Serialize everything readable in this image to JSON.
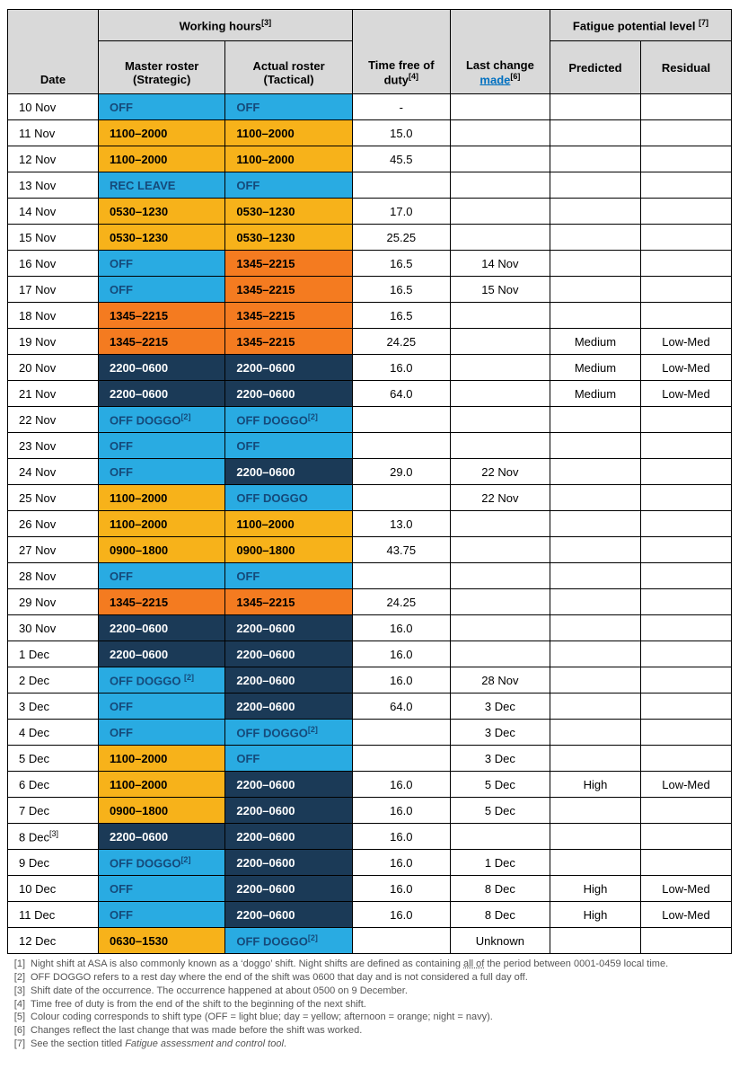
{
  "colors": {
    "off": "#29abe2",
    "day": "#f7b21a",
    "afternoon": "#f47b20",
    "night": "#1b3a57",
    "header": "#d9d9d9"
  },
  "headers": {
    "working_hours": "Working hours",
    "wh_sup": "[3]",
    "fatigue": "Fatigue potential level ",
    "fat_sup": "[7]",
    "date": "Date",
    "master_l1": "Master roster",
    "master_l2": "(Strategic)",
    "actual_l1": "Actual roster",
    "actual_l2": "(Tactical)",
    "tf_l1": "Time free of",
    "tf_l2": "duty",
    "tf_sup": "[4]",
    "last_l1": "Last change",
    "last_made": "made",
    "last_sup": "[6]",
    "predicted": "Predicted",
    "residual": "Residual"
  },
  "cellTypeToClass": {
    "off": "off",
    "day": "day",
    "aft": "aft",
    "nite": "nite"
  },
  "rows": [
    {
      "date": "10 Nov",
      "m": {
        "t": "OFF",
        "c": "off"
      },
      "a": {
        "t": "OFF",
        "c": "off"
      },
      "tf": "-",
      "last": "",
      "pred": "",
      "res": ""
    },
    {
      "date": "11 Nov",
      "m": {
        "t": "1100–2000",
        "c": "day"
      },
      "a": {
        "t": "1100–2000",
        "c": "day"
      },
      "tf": "15.0",
      "last": "",
      "pred": "",
      "res": ""
    },
    {
      "date": "12 Nov",
      "m": {
        "t": "1100–2000",
        "c": "day"
      },
      "a": {
        "t": "1100–2000",
        "c": "day"
      },
      "tf": "45.5",
      "last": "",
      "pred": "",
      "res": ""
    },
    {
      "date": "13 Nov",
      "m": {
        "t": "REC LEAVE",
        "c": "off"
      },
      "a": {
        "t": "OFF",
        "c": "off"
      },
      "tf": "",
      "last": "",
      "pred": "",
      "res": ""
    },
    {
      "date": "14 Nov",
      "m": {
        "t": "0530–1230",
        "c": "day"
      },
      "a": {
        "t": "0530–1230",
        "c": "day"
      },
      "tf": "17.0",
      "last": "",
      "pred": "",
      "res": ""
    },
    {
      "date": "15 Nov",
      "m": {
        "t": "0530–1230",
        "c": "day"
      },
      "a": {
        "t": "0530–1230",
        "c": "day"
      },
      "tf": "25.25",
      "last": "",
      "pred": "",
      "res": ""
    },
    {
      "date": "16 Nov",
      "m": {
        "t": "OFF",
        "c": "off"
      },
      "a": {
        "t": "1345–2215",
        "c": "aft"
      },
      "tf": "16.5",
      "last": "14 Nov",
      "pred": "",
      "res": ""
    },
    {
      "date": "17 Nov",
      "m": {
        "t": "OFF",
        "c": "off"
      },
      "a": {
        "t": "1345–2215",
        "c": "aft"
      },
      "tf": "16.5",
      "last": "15 Nov",
      "pred": "",
      "res": ""
    },
    {
      "date": "18 Nov",
      "m": {
        "t": "1345–2215",
        "c": "aft"
      },
      "a": {
        "t": "1345–2215",
        "c": "aft"
      },
      "tf": "16.5",
      "last": "",
      "pred": "",
      "res": ""
    },
    {
      "date": "19 Nov",
      "m": {
        "t": "1345–2215",
        "c": "aft"
      },
      "a": {
        "t": "1345–2215",
        "c": "aft"
      },
      "tf": "24.25",
      "last": "",
      "pred": "Medium",
      "res": "Low-Med"
    },
    {
      "date": "20 Nov",
      "m": {
        "t": "2200–0600",
        "c": "nite"
      },
      "a": {
        "t": "2200–0600",
        "c": "nite"
      },
      "tf": "16.0",
      "last": "",
      "pred": "Medium",
      "res": "Low-Med"
    },
    {
      "date": "21 Nov",
      "m": {
        "t": "2200–0600",
        "c": "nite"
      },
      "a": {
        "t": "2200–0600",
        "c": "nite"
      },
      "tf": "64.0",
      "last": "",
      "pred": "Medium",
      "res": "Low-Med"
    },
    {
      "date": "22 Nov",
      "m": {
        "t": "OFF DOGGO",
        "sup": "[2]",
        "c": "off"
      },
      "a": {
        "t": "OFF DOGGO",
        "sup": "[2]",
        "c": "off"
      },
      "tf": "",
      "last": "",
      "pred": "",
      "res": ""
    },
    {
      "date": "23 Nov",
      "m": {
        "t": "OFF",
        "c": "off"
      },
      "a": {
        "t": "OFF",
        "c": "off"
      },
      "tf": "",
      "last": "",
      "pred": "",
      "res": ""
    },
    {
      "date": "24 Nov",
      "m": {
        "t": "OFF",
        "c": "off"
      },
      "a": {
        "t": "2200–0600",
        "c": "nite"
      },
      "tf": "29.0",
      "last": "22 Nov",
      "pred": "",
      "res": ""
    },
    {
      "date": "25 Nov",
      "m": {
        "t": "1100–2000",
        "c": "day"
      },
      "a": {
        "t": "OFF DOGGO",
        "c": "off"
      },
      "tf": "",
      "last": "22 Nov",
      "pred": "",
      "res": ""
    },
    {
      "date": "26 Nov",
      "m": {
        "t": "1100–2000",
        "c": "day"
      },
      "a": {
        "t": "1100–2000",
        "c": "day"
      },
      "tf": "13.0",
      "last": "",
      "pred": "",
      "res": ""
    },
    {
      "date": "27 Nov",
      "m": {
        "t": "0900–1800",
        "c": "day"
      },
      "a": {
        "t": "0900–1800",
        "c": "day"
      },
      "tf": "43.75",
      "last": "",
      "pred": "",
      "res": ""
    },
    {
      "date": "28 Nov",
      "m": {
        "t": "OFF",
        "c": "off"
      },
      "a": {
        "t": "OFF",
        "c": "off"
      },
      "tf": "",
      "last": "",
      "pred": "",
      "res": ""
    },
    {
      "date": "29 Nov",
      "m": {
        "t": "1345–2215",
        "c": "aft"
      },
      "a": {
        "t": "1345–2215",
        "c": "aft"
      },
      "tf": "24.25",
      "last": "",
      "pred": "",
      "res": ""
    },
    {
      "date": "30 Nov",
      "m": {
        "t": "2200–0600",
        "c": "nite"
      },
      "a": {
        "t": "2200–0600",
        "c": "nite"
      },
      "tf": "16.0",
      "last": "",
      "pred": "",
      "res": ""
    },
    {
      "date": "1 Dec",
      "m": {
        "t": "2200–0600",
        "c": "nite"
      },
      "a": {
        "t": "2200–0600",
        "c": "nite"
      },
      "tf": "16.0",
      "last": "",
      "pred": "",
      "res": ""
    },
    {
      "date": "2 Dec",
      "m": {
        "t": "OFF DOGGO ",
        "sup": "[2]",
        "c": "off"
      },
      "a": {
        "t": "2200–0600",
        "c": "nite"
      },
      "tf": "16.0",
      "last": "28 Nov",
      "pred": "",
      "res": ""
    },
    {
      "date": "3 Dec",
      "m": {
        "t": "OFF",
        "c": "off"
      },
      "a": {
        "t": "2200–0600",
        "c": "nite"
      },
      "tf": "64.0",
      "last": "3 Dec",
      "pred": "",
      "res": ""
    },
    {
      "date": "4 Dec",
      "m": {
        "t": "OFF",
        "c": "off"
      },
      "a": {
        "t": "OFF DOGGO",
        "sup": "[2]",
        "c": "off"
      },
      "tf": "",
      "last": "3 Dec",
      "pred": "",
      "res": ""
    },
    {
      "date": "5 Dec",
      "m": {
        "t": "1100–2000",
        "c": "day"
      },
      "a": {
        "t": "OFF",
        "c": "off"
      },
      "tf": "",
      "last": "3 Dec",
      "pred": "",
      "res": ""
    },
    {
      "date": "6 Dec",
      "m": {
        "t": "1100–2000",
        "c": "day"
      },
      "a": {
        "t": "2200–0600",
        "c": "nite"
      },
      "tf": "16.0",
      "last": "5 Dec",
      "pred": "High",
      "res": "Low-Med"
    },
    {
      "date": "7 Dec",
      "m": {
        "t": "0900–1800",
        "c": "day"
      },
      "a": {
        "t": "2200–0600",
        "c": "nite"
      },
      "tf": "16.0",
      "last": "5 Dec",
      "pred": "",
      "res": ""
    },
    {
      "date": "8 Dec",
      "dsup": "[3]",
      "m": {
        "t": "2200–0600",
        "c": "nite"
      },
      "a": {
        "t": "2200–0600",
        "c": "nite"
      },
      "tf": "16.0",
      "last": "",
      "pred": "",
      "res": ""
    },
    {
      "date": "9 Dec",
      "m": {
        "t": "OFF DOGGO",
        "sup": "[2]",
        "c": "off"
      },
      "a": {
        "t": "2200–0600",
        "c": "nite"
      },
      "tf": "16.0",
      "last": "1 Dec",
      "pred": "",
      "res": ""
    },
    {
      "date": "10 Dec",
      "m": {
        "t": "OFF",
        "c": "off"
      },
      "a": {
        "t": "2200–0600",
        "c": "nite"
      },
      "tf": "16.0",
      "last": "8 Dec",
      "pred": "High",
      "res": "Low-Med"
    },
    {
      "date": "11 Dec",
      "m": {
        "t": "OFF",
        "c": "off"
      },
      "a": {
        "t": "2200–0600",
        "c": "nite"
      },
      "tf": "16.0",
      "last": "8 Dec",
      "pred": "High",
      "res": "Low-Med"
    },
    {
      "date": "12 Dec",
      "m": {
        "t": "0630–1530",
        "c": "day"
      },
      "a": {
        "t": "OFF DOGGO",
        "sup": "[2]",
        "c": "off"
      },
      "tf": "",
      "last": "Unknown",
      "pred": "",
      "res": ""
    }
  ],
  "footnotes": [
    {
      "n": "[1]",
      "t": "Night shift at ASA is also commonly known as a ‘doggo’ shift. Night shifts are defined as containing ",
      "u": "all of",
      "t2": " the period between 0001-0459 local time."
    },
    {
      "n": "[2]",
      "t": "OFF DOGGO refers to a rest day where the end of the shift was 0600 that day and is not considered a full day off."
    },
    {
      "n": "[3]",
      "t": "Shift date of the occurrence. The occurrence happened at about 0500 on 9 December."
    },
    {
      "n": "[4]",
      "t": "Time free of duty is from the end of the shift to the beginning of the next shift."
    },
    {
      "n": "[5]",
      "t": "Colour coding corresponds to shift type (OFF = light blue; day = yellow; afternoon = orange; night = navy)."
    },
    {
      "n": "[6]",
      "t": "Changes reflect the last change that was made before the shift was worked."
    },
    {
      "n": "[7]",
      "t": "See the section titled ",
      "i": "Fatigue assessment and control tool",
      "t2": "."
    }
  ]
}
